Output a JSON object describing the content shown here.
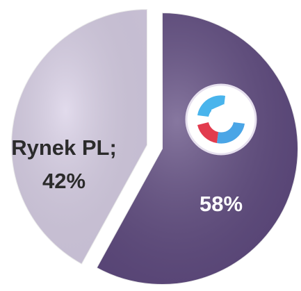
{
  "chart_data": {
    "type": "pie",
    "categories": [
      "Rynek PL;",
      null
    ],
    "values": [
      42,
      58
    ],
    "value_labels": [
      "42%",
      "58%"
    ],
    "colors": [
      "#d8cfe6",
      "#5f4a80"
    ],
    "start_angle": 0,
    "direction": "clockwise-from-last"
  }
}
